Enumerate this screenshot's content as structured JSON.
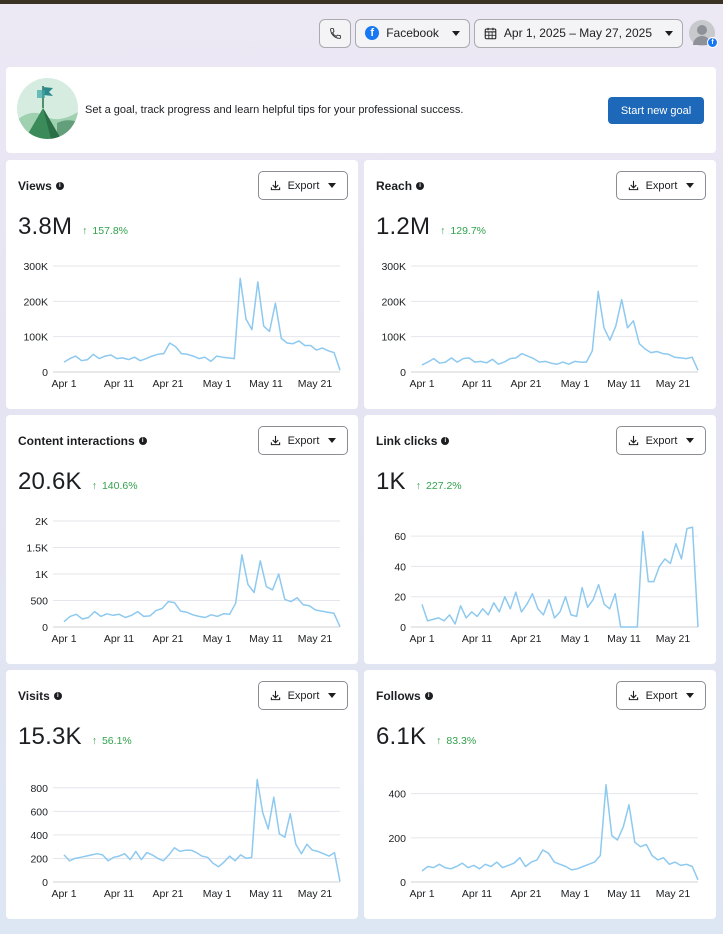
{
  "topbar": {
    "platform_label": "Facebook",
    "date_range": "Apr 1, 2025 – May 27, 2025"
  },
  "goal": {
    "text": "Set a goal, track progress and learn helpful tips for your professional success.",
    "button": "Start new goal"
  },
  "colors": {
    "line": "#8ec9f0",
    "grid": "#e4e6eb",
    "accent": "#1e68b9",
    "positive": "#31a24c"
  },
  "cards": [
    {
      "title": "Views",
      "export_label": "Export",
      "value": "3.8M",
      "change": "157.8%",
      "chart_data": {
        "type": "line",
        "x_tick_labels": [
          "Apr 1",
          "Apr 11",
          "Apr 21",
          "May 1",
          "May 11",
          "May 21"
        ],
        "y_tick_labels": [
          "0",
          "100K",
          "200K",
          "300K"
        ],
        "ylim": [
          0,
          300000
        ],
        "values": [
          28000,
          38000,
          45000,
          32000,
          35000,
          50000,
          38000,
          45000,
          48000,
          38000,
          40000,
          35000,
          42000,
          32000,
          38000,
          45000,
          50000,
          52000,
          82000,
          72000,
          52000,
          50000,
          45000,
          38000,
          42000,
          30000,
          45000,
          42000,
          40000,
          38000,
          265000,
          150000,
          120000,
          255000,
          130000,
          115000,
          195000,
          95000,
          82000,
          80000,
          88000,
          75000,
          75000,
          62000,
          68000,
          60000,
          55000,
          5000
        ]
      }
    },
    {
      "title": "Reach",
      "export_label": "Export",
      "value": "1.2M",
      "change": "129.7%",
      "chart_data": {
        "type": "line",
        "x_tick_labels": [
          "Apr 1",
          "Apr 11",
          "Apr 21",
          "May 1",
          "May 11",
          "May 21"
        ],
        "y_tick_labels": [
          "0",
          "100K",
          "200K",
          "300K"
        ],
        "ylim": [
          0,
          300000
        ],
        "values": [
          20000,
          28000,
          38000,
          25000,
          28000,
          40000,
          28000,
          38000,
          40000,
          28000,
          30000,
          26000,
          36000,
          22000,
          28000,
          38000,
          40000,
          52000,
          45000,
          38000,
          28000,
          30000,
          25000,
          22000,
          28000,
          22000,
          30000,
          28000,
          28000,
          60000,
          228000,
          125000,
          90000,
          130000,
          205000,
          125000,
          145000,
          80000,
          65000,
          55000,
          58000,
          52000,
          50000,
          42000,
          40000,
          38000,
          42000,
          5000
        ]
      }
    },
    {
      "title": "Content interactions",
      "export_label": "Export",
      "value": "20.6K",
      "change": "140.6%",
      "chart_data": {
        "type": "line",
        "x_tick_labels": [
          "Apr 1",
          "Apr 11",
          "Apr 21",
          "May 1",
          "May 11",
          "May 21"
        ],
        "y_tick_labels": [
          "0",
          "500",
          "1K",
          "1.5K",
          "2K"
        ],
        "ylim": [
          0,
          2000
        ],
        "values": [
          100,
          200,
          240,
          150,
          180,
          290,
          200,
          250,
          220,
          240,
          180,
          220,
          290,
          200,
          210,
          310,
          350,
          480,
          460,
          300,
          280,
          230,
          200,
          180,
          230,
          200,
          250,
          240,
          450,
          1360,
          800,
          650,
          1250,
          760,
          700,
          1000,
          520,
          480,
          550,
          420,
          400,
          320,
          300,
          280,
          260,
          5
        ]
      }
    },
    {
      "title": "Link clicks",
      "export_label": "Export",
      "value": "1K",
      "change": "227.2%",
      "chart_data": {
        "type": "line",
        "x_tick_labels": [
          "Apr 1",
          "Apr 11",
          "Apr 21",
          "May 1",
          "May 11",
          "May 21"
        ],
        "y_tick_labels": [
          "0",
          "20",
          "40",
          "60"
        ],
        "ylim": [
          0,
          70
        ],
        "values": [
          15,
          4,
          5,
          6,
          4,
          8,
          2,
          14,
          6,
          10,
          7,
          12,
          8,
          16,
          10,
          20,
          12,
          23,
          10,
          15,
          22,
          12,
          8,
          18,
          6,
          10,
          20,
          8,
          7,
          26,
          13,
          18,
          28,
          15,
          12,
          22,
          0,
          0,
          0,
          0,
          63,
          30,
          30,
          40,
          45,
          42,
          55,
          45,
          65,
          66,
          0
        ]
      }
    },
    {
      "title": "Visits",
      "export_label": "Export",
      "value": "15.3K",
      "change": "56.1%",
      "chart_data": {
        "type": "line",
        "x_tick_labels": [
          "Apr 1",
          "Apr 11",
          "Apr 21",
          "May 1",
          "May 11",
          "May 21"
        ],
        "y_tick_labels": [
          "0",
          "200",
          "400",
          "600",
          "800"
        ],
        "ylim": [
          0,
          900
        ],
        "values": [
          230,
          180,
          200,
          210,
          220,
          230,
          240,
          230,
          180,
          210,
          220,
          240,
          190,
          260,
          190,
          250,
          230,
          200,
          180,
          230,
          290,
          260,
          270,
          270,
          250,
          220,
          210,
          160,
          130,
          170,
          220,
          180,
          230,
          200,
          210,
          870,
          590,
          450,
          720,
          410,
          380,
          580,
          320,
          240,
          320,
          270,
          260,
          240,
          220,
          250,
          5
        ]
      }
    },
    {
      "title": "Follows",
      "export_label": "Export",
      "value": "6.1K",
      "change": "83.3%",
      "chart_data": {
        "type": "line",
        "x_tick_labels": [
          "Apr 1",
          "Apr 11",
          "Apr 21",
          "May 1",
          "May 11",
          "May 21"
        ],
        "y_tick_labels": [
          "0",
          "200",
          "400"
        ],
        "ylim": [
          0,
          480
        ],
        "values": [
          50,
          70,
          65,
          80,
          65,
          60,
          70,
          85,
          65,
          75,
          60,
          80,
          70,
          90,
          65,
          75,
          85,
          110,
          70,
          90,
          100,
          145,
          130,
          90,
          80,
          70,
          55,
          60,
          70,
          80,
          90,
          120,
          440,
          210,
          190,
          250,
          350,
          180,
          160,
          170,
          120,
          100,
          110,
          80,
          90,
          75,
          80,
          70,
          10
        ]
      }
    }
  ]
}
